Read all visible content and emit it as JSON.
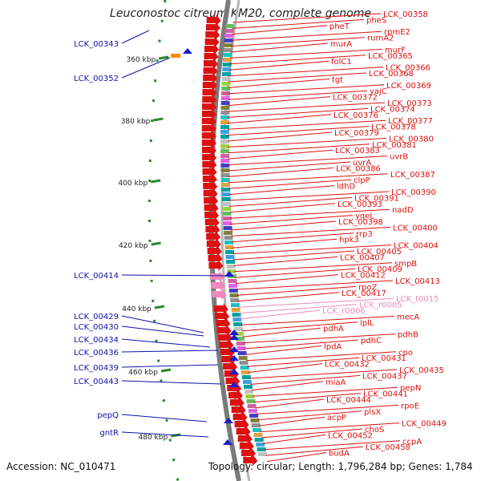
{
  "title": "Leuconostoc citreum KM20, complete genome",
  "accession": "Accession: NC_010471",
  "summary": "Topology: circular; Length: 1,796,284 bp; Genes: 1,784",
  "scale_labels": [
    "360 kbp",
    "380 kbp",
    "400 kbp",
    "420 kbp",
    "440 kbp",
    "460 kbp",
    "480 kbp"
  ],
  "colors": {
    "gene": "#dd1111",
    "rna": "#ee88bb",
    "left_label": "#1111aa",
    "backbone": "#8a8a8a",
    "ticks": "#2a8a2a",
    "reverse_strand": "#1a1acc"
  },
  "left_labels": [
    "LCK_00343",
    "LCK_00352",
    "LCK_00414",
    "LCK_00429",
    "LCK_00430",
    "LCK_00434",
    "LCK_00436",
    "LCK_00439",
    "LCK_00443",
    "pepQ",
    "gntR"
  ],
  "right_labels": [
    "LCK_00358",
    "pheS",
    "pheT",
    "rpmE2",
    "rumA2",
    "murA",
    "murF",
    "LCK_00365",
    "folC1",
    "LCK_00366",
    "LCK_00368",
    "tgt",
    "LCK_00369",
    "yajC",
    "LCK_00372",
    "LCK_00373",
    "LCK_00374",
    "LCK_00376",
    "LCK_00377",
    "LCK_00378",
    "LCK_00379",
    "LCK_00380",
    "LCK_00381",
    "LCK_00383",
    "uvrB",
    "uvrA",
    "LCK_00386",
    "LCK_00387",
    "clpP",
    "ldhD",
    "LCK_00390",
    "LCK_00391",
    "LCK_00393",
    "nadD",
    "yqeL",
    "LCK_00398",
    "LCK_00400",
    "rrp3",
    "hpk3",
    "LCK_00404",
    "LCK_00405",
    "LCK_00407",
    "smpB",
    "LCK_00409",
    "LCK_00412",
    "LCK_00413",
    "rpoZ",
    "LCK_00417",
    "LCK_t0015",
    "LCK_r0005",
    "LCK_r0006",
    "mecA",
    "lplL",
    "pdhA",
    "pdhB",
    "pdhC",
    "lpdA",
    "cpo",
    "LCK_00431",
    "LCK_00432",
    "LCK_00435",
    "LCK_00437",
    "miaA",
    "pepN",
    "LCK_00441",
    "LCK_00444",
    "rpoE",
    "plsX",
    "acpP",
    "LCK_00449",
    "choS",
    "LCK_00452",
    "ccpA",
    "LCK_00458",
    "budA"
  ]
}
